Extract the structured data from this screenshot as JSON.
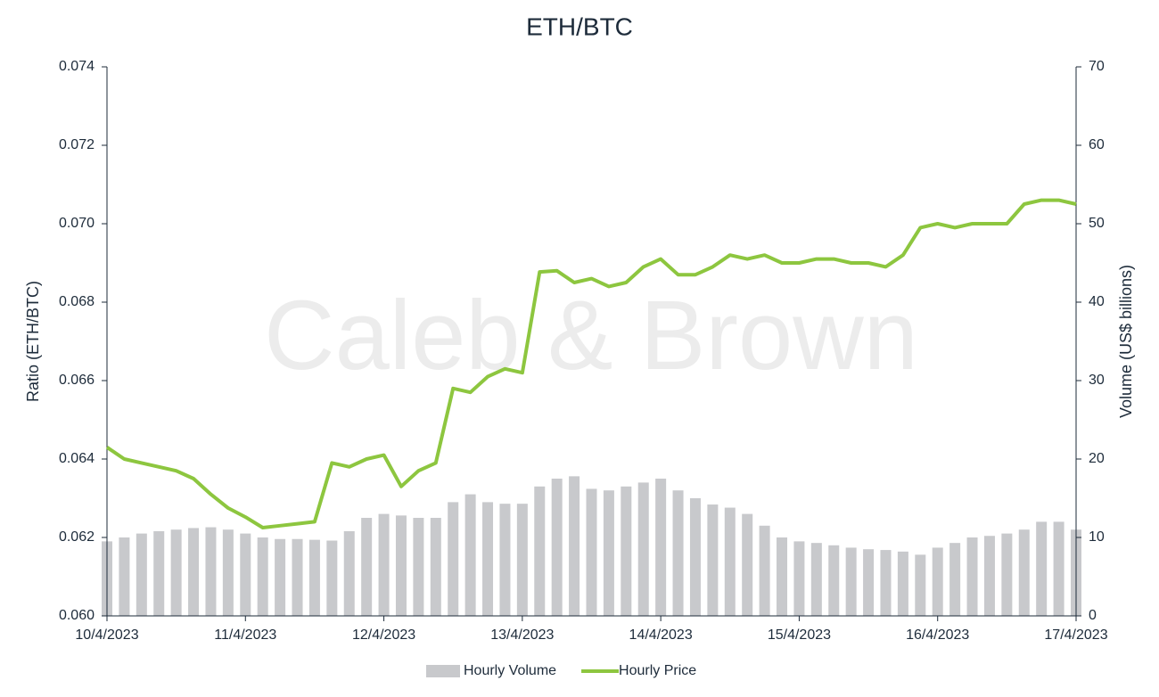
{
  "chart_data": {
    "type": "line_bar",
    "title": "ETH/BTC",
    "watermark": "Caleb & Brown",
    "ylabel": "Ratio (ETH/BTC)",
    "y2label": "Volume (US$ billions)",
    "categories": [
      "10/4/2023",
      null,
      null,
      null,
      null,
      null,
      null,
      null,
      "11/4/2023",
      null,
      null,
      null,
      null,
      null,
      null,
      null,
      "12/4/2023",
      null,
      null,
      null,
      null,
      null,
      null,
      null,
      "13/4/2023",
      null,
      null,
      null,
      null,
      null,
      null,
      null,
      "14/4/2023",
      null,
      null,
      null,
      null,
      null,
      null,
      null,
      "15/4/2023",
      null,
      null,
      null,
      null,
      null,
      null,
      null,
      "16/4/2023",
      null,
      null,
      null,
      null,
      null,
      null,
      null,
      "17/4/2023"
    ],
    "series": [
      {
        "name": "Hourly Volume",
        "color": "#c8c9cc",
        "axis": "y2",
        "kind": "bar",
        "values": [
          9.5,
          10,
          10.5,
          10.8,
          11,
          11.2,
          11.3,
          11,
          10.5,
          10,
          9.8,
          9.8,
          9.7,
          9.6,
          10.8,
          12.5,
          13,
          12.8,
          12.5,
          12.5,
          14.5,
          15.5,
          14.5,
          14.3,
          14.3,
          16.5,
          17.5,
          17.8,
          16.2,
          16,
          16.5,
          17,
          17.5,
          16,
          15,
          14.2,
          13.8,
          13,
          11.5,
          10,
          9.5,
          9.3,
          9,
          8.7,
          8.5,
          8.4,
          8.2,
          7.8,
          8.7,
          9.3,
          10,
          10.2,
          10.5,
          11,
          12,
          12,
          11
        ]
      },
      {
        "name": "Hourly Price",
        "color": "#8dc63f",
        "axis": "y",
        "kind": "line",
        "values": [
          0.0643,
          0.064,
          0.0639,
          0.0638,
          0.0637,
          0.0635,
          0.0631,
          0.06275,
          0.06252,
          0.06225,
          0.0623,
          0.06235,
          0.0624,
          0.0639,
          0.0638,
          0.064,
          0.0641,
          0.0633,
          0.0637,
          0.0639,
          0.0658,
          0.0657,
          0.0661,
          0.0663,
          0.0662,
          0.06877,
          0.0688,
          0.0685,
          0.0686,
          0.0684,
          0.0685,
          0.0689,
          0.0691,
          0.0687,
          0.0687,
          0.0689,
          0.0692,
          0.0691,
          0.0692,
          0.069,
          0.069,
          0.0691,
          0.0691,
          0.069,
          0.069,
          0.0689,
          0.0692,
          0.0699,
          0.07,
          0.0699,
          0.07,
          0.07,
          0.07,
          0.0705,
          0.0706,
          0.0706,
          0.0705
        ]
      }
    ],
    "ylim": [
      0.06,
      0.074
    ],
    "yticks": [
      {
        "value": 0.06,
        "label": "0.060"
      },
      {
        "value": 0.062,
        "label": "0.062"
      },
      {
        "value": 0.064,
        "label": "0.064"
      },
      {
        "value": 0.066,
        "label": "0.066"
      },
      {
        "value": 0.068,
        "label": "0.068"
      },
      {
        "value": 0.07,
        "label": "0.070"
      },
      {
        "value": 0.072,
        "label": "0.072"
      },
      {
        "value": 0.074,
        "label": "0.074"
      }
    ],
    "y2lim": [
      0,
      70
    ],
    "y2ticks": [
      0,
      10,
      20,
      30,
      40,
      50,
      60,
      70
    ],
    "legend": "bottom",
    "grid": false
  }
}
